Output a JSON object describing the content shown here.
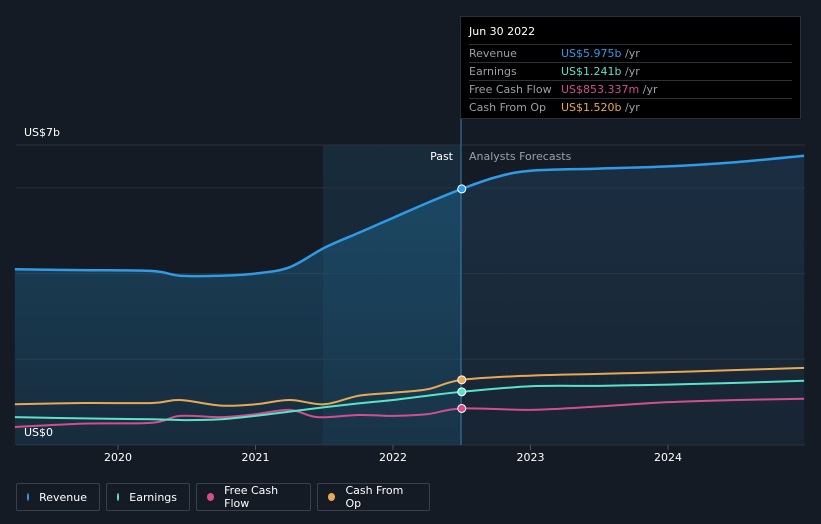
{
  "chart_data": {
    "type": "area",
    "y_max_label": "US$7b",
    "y_min_label": "US$0",
    "ylim": [
      0,
      7
    ],
    "x_ticks": [
      "2020",
      "2021",
      "2022",
      "2023",
      "2024"
    ],
    "divider": {
      "past_label": "Past",
      "forecast_label": "Analysts Forecasts",
      "date": 2022.5
    },
    "series": [
      {
        "name": "Revenue",
        "color": "#2f9be6",
        "points": [
          [
            2019.25,
            4.1
          ],
          [
            2019.75,
            4.08
          ],
          [
            2020.25,
            4.06
          ],
          [
            2020.45,
            3.95
          ],
          [
            2020.75,
            3.95
          ],
          [
            2021.0,
            4.0
          ],
          [
            2021.25,
            4.15
          ],
          [
            2021.5,
            4.6
          ],
          [
            2021.75,
            4.95
          ],
          [
            2022.0,
            5.3
          ],
          [
            2022.25,
            5.65
          ],
          [
            2022.5,
            5.975
          ],
          [
            2022.75,
            6.25
          ],
          [
            2023.0,
            6.4
          ],
          [
            2023.5,
            6.45
          ],
          [
            2024.0,
            6.5
          ],
          [
            2024.5,
            6.6
          ],
          [
            2024.99,
            6.75
          ]
        ]
      },
      {
        "name": "Earnings",
        "color": "#5be3c8",
        "points": [
          [
            2019.25,
            0.65
          ],
          [
            2019.75,
            0.62
          ],
          [
            2020.25,
            0.6
          ],
          [
            2020.5,
            0.58
          ],
          [
            2020.75,
            0.6
          ],
          [
            2021.0,
            0.68
          ],
          [
            2021.25,
            0.78
          ],
          [
            2021.5,
            0.88
          ],
          [
            2021.75,
            0.97
          ],
          [
            2022.0,
            1.05
          ],
          [
            2022.25,
            1.15
          ],
          [
            2022.5,
            1.241
          ],
          [
            2023.0,
            1.37
          ],
          [
            2023.5,
            1.38
          ],
          [
            2024.0,
            1.41
          ],
          [
            2024.5,
            1.45
          ],
          [
            2024.99,
            1.5
          ]
        ]
      },
      {
        "name": "Free Cash Flow",
        "color": "#d24f8e",
        "points": [
          [
            2019.25,
            0.42
          ],
          [
            2019.75,
            0.5
          ],
          [
            2020.25,
            0.52
          ],
          [
            2020.45,
            0.68
          ],
          [
            2020.75,
            0.65
          ],
          [
            2021.0,
            0.72
          ],
          [
            2021.25,
            0.82
          ],
          [
            2021.45,
            0.65
          ],
          [
            2021.75,
            0.7
          ],
          [
            2022.0,
            0.68
          ],
          [
            2022.25,
            0.72
          ],
          [
            2022.5,
            0.853
          ],
          [
            2023.0,
            0.82
          ],
          [
            2023.5,
            0.9
          ],
          [
            2024.0,
            1.0
          ],
          [
            2024.5,
            1.05
          ],
          [
            2024.99,
            1.08
          ]
        ]
      },
      {
        "name": "Cash From Op",
        "color": "#e8a954",
        "points": [
          [
            2019.25,
            0.95
          ],
          [
            2019.75,
            0.98
          ],
          [
            2020.25,
            0.98
          ],
          [
            2020.45,
            1.05
          ],
          [
            2020.75,
            0.92
          ],
          [
            2021.0,
            0.95
          ],
          [
            2021.25,
            1.05
          ],
          [
            2021.5,
            0.95
          ],
          [
            2021.75,
            1.15
          ],
          [
            2022.0,
            1.22
          ],
          [
            2022.25,
            1.3
          ],
          [
            2022.5,
            1.52
          ],
          [
            2023.0,
            1.62
          ],
          [
            2023.5,
            1.66
          ],
          [
            2024.0,
            1.7
          ],
          [
            2024.5,
            1.75
          ],
          [
            2024.99,
            1.8
          ]
        ]
      }
    ]
  },
  "tooltip": {
    "date": "Jun 30 2022",
    "unit": "/yr",
    "rows": [
      {
        "label": "Revenue",
        "value": "US$5.975b",
        "color": "#2f9be6"
      },
      {
        "label": "Earnings",
        "value": "US$1.241b",
        "color": "#5be3c8"
      },
      {
        "label": "Free Cash Flow",
        "value": "US$853.337m",
        "color": "#d24f8e"
      },
      {
        "label": "Cash From Op",
        "value": "US$1.520b",
        "color": "#e8a954"
      }
    ]
  },
  "legend": [
    {
      "label": "Revenue",
      "color": "#2f9be6"
    },
    {
      "label": "Earnings",
      "color": "#5be3c8"
    },
    {
      "label": "Free Cash Flow",
      "color": "#d24f8e"
    },
    {
      "label": "Cash From Op",
      "color": "#e8a954"
    }
  ]
}
